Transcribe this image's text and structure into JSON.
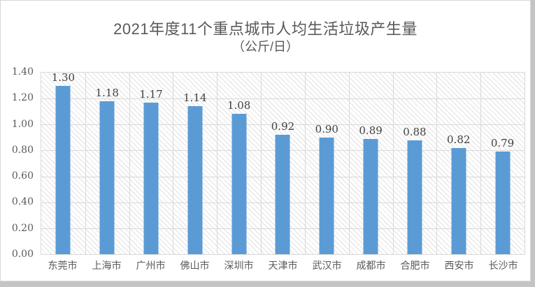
{
  "title": "2021年度11个重点城市人均生活垃圾产生量",
  "subtitle": "（公斤/日）",
  "colors": {
    "bar": "#5B9BD5",
    "grid": "#D9D9D9",
    "hatch": "#E3E3E3",
    "axis_text": "#595959",
    "label_text": "#404040",
    "frame_bg": "#C4C4C4"
  },
  "chart_data": {
    "type": "bar",
    "title": "2021年度11个重点城市人均生活垃圾产生量",
    "subtitle": "（公斤/日）",
    "categories": [
      "东莞市",
      "上海市",
      "广州市",
      "佛山市",
      "深圳市",
      "天津市",
      "武汉市",
      "成都市",
      "合肥市",
      "西安市",
      "长沙市"
    ],
    "values": [
      1.3,
      1.18,
      1.17,
      1.14,
      1.08,
      0.92,
      0.9,
      0.89,
      0.88,
      0.82,
      0.79
    ],
    "value_labels": [
      "1.30",
      "1.18",
      "1.17",
      "1.14",
      "1.08",
      "0.92",
      "0.90",
      "0.89",
      "0.88",
      "0.82",
      "0.79"
    ],
    "xlabel": "",
    "ylabel": "",
    "ylim": [
      0,
      1.4
    ],
    "ytick_values": [
      0.0,
      0.2,
      0.4,
      0.6,
      0.8,
      1.0,
      1.2,
      1.4
    ],
    "ytick_labels": [
      "0.00",
      "0.20",
      "0.40",
      "0.60",
      "0.80",
      "1.00",
      "1.20",
      "1.40"
    ],
    "grid": true,
    "plot_pattern": "light-downward-diagonal",
    "legend_position": "none",
    "data_labels": true
  }
}
